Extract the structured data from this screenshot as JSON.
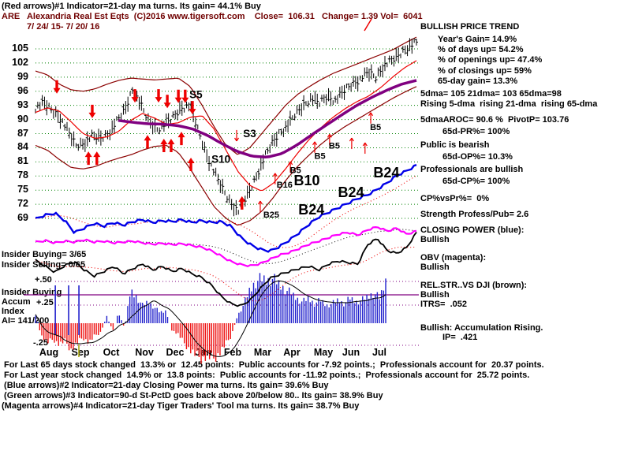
{
  "window": {
    "header_line1": "(Red arrows)#1 Indicator=21-day ma turns. Its gain= 44.1% Buy",
    "header_line2": "ARE   Alexandria Real Est Eqts  (C)2016 www.tigersoft.com    Close=  106.31   Change= 1.39 Vol=  6041",
    "date_range": "7/ 24/ 15- 7/ 20/ 16"
  },
  "right_panel": {
    "lines": [
      "BULLISH PRICE TREND",
      "Year's Gain= 14.9%",
      "% of days up= 54.2%",
      "% of openings up= 47.4%",
      "% of closings up= 59%",
      "65-day gain= 13.3%",
      "5dma= 105 21dma= 103 65dma=98",
      "Rising 5-dma  rising 21-dma  rising 65-dma",
      "5dmaAROC= 90.6 %  PivotP= 103.76",
      "65d-PR%= 100%",
      "Public is bearish",
      "65d-OP%= 10.3%",
      "Professionals are bullish",
      "65d-CP%= 100%",
      "CP%vsPr%=  0%",
      "Strength Profess/Pub= 2.6",
      "CLOSING POWER (blue):",
      "Bullish",
      "OBV (magenta):",
      "Bullish",
      "REL.STR..VS DJI (brown):",
      "Bullish",
      "ITRS=  .052",
      "Bullish: Accumulation Rising.",
      "IP=  .421"
    ]
  },
  "left_labels": [
    "Insider Buying= 3/65",
    "Insider Selling= 0/65",
    "+.50",
    "Insider Buying",
    "Accum",
    "+.25",
    "Index",
    "AI= 141/200",
    "-.25"
  ],
  "footer_lines": [
    " For Last 65 days stock changed  13.3% or  12.45 points:  Public accounts for -7.92 points.;  Professionals account for  20.37 points.",
    " For Last year stock changed  14.9% or  13.8 points:  Public accounts for -11.92 points.;  Professionals account for  25.72 points.",
    " (Blue arrows)#2 Indicator=21-day Closing Power ma turns. Its gain= 39.6% Buy",
    " (Green arrows)#3 Indicator=90-d St-PctD goes back above 20/below 80.. Its gain= 38.9% Buy",
    "(Magenta arrows)#4 Indicator=21-day Tiger Traders' Tool ma turns. Its gain= 38.7% Buy"
  ],
  "colors": {
    "text": "#000000",
    "ticker_text": "#700000",
    "grid_green": "#008000",
    "band": "#8b0000",
    "ma21": "#ee0000",
    "ma65": "#800080",
    "price": "#000000",
    "closing_power": "#0000e8",
    "cp_ma": "#ee0000",
    "obv": "#ff00ff",
    "obv_ma": "#000000",
    "rel_strength": "#000000",
    "rs_ma": "#ee0000",
    "accum_pos": "#2020cc",
    "accum_neg": "#ee1010",
    "ref_purple": "#800080",
    "signal_red": "#ee0000",
    "month_tick": "#a0a000",
    "insider_mark": "#2020cc"
  },
  "chart_data": {
    "type": "ohlc+indicators",
    "symbol": "ARE",
    "y_ticks": [
      105,
      102,
      99,
      96,
      93,
      90,
      87,
      84,
      81,
      78,
      75,
      72,
      69
    ],
    "months": [
      "Aug",
      "Sep",
      "Oct",
      "Nov",
      "Dec",
      "Jan",
      "Feb",
      "Mar",
      "Apr",
      "May",
      "Jun",
      "Jul"
    ],
    "price_weekly_close": [
      92.5,
      93.5,
      92,
      90.5,
      87.5,
      84.5,
      85,
      86.5,
      86,
      87,
      89.5,
      92,
      96.5,
      93,
      89.5,
      88,
      89,
      90.5,
      92.5,
      93,
      88,
      83,
      79,
      75.5,
      72.5,
      70.5,
      73.5,
      77,
      81,
      84.5,
      87,
      88.5,
      91,
      93,
      94.5,
      93.5,
      95,
      94,
      96,
      97.5,
      98.5,
      100,
      99,
      101.5,
      102.5,
      104,
      105.5,
      106.3
    ],
    "ma21": [
      91.5,
      92.5,
      91.8,
      89.5,
      87,
      86,
      86.3,
      87.5,
      89.8,
      91.3,
      90.3,
      89,
      89.3,
      90.5,
      90.8,
      88,
      83.5,
      79,
      76,
      74.8,
      76.5,
      79.5,
      82.8,
      85.8,
      88.3,
      90.5,
      92.3,
      93.8,
      95,
      96.8,
      99,
      101,
      102.5
    ],
    "ma65": {
      "t0": 0.217,
      "values": [
        89.8,
        89.4,
        89.1,
        89,
        88.7,
        88,
        86.6,
        84.8,
        83.2,
        82.2,
        82,
        82.8,
        84.6,
        86.8,
        88.9,
        91,
        93,
        94.7,
        96.2,
        97.5,
        98.3
      ]
    },
    "upper_band": [
      100.3,
      99.5,
      97.5,
      96.3,
      96,
      96.5,
      97.5,
      98.3,
      98.8,
      98.6,
      98.4,
      98.6,
      98.8,
      97,
      93,
      88.5,
      84.5,
      82.5,
      84,
      87,
      90,
      93,
      95.3,
      97,
      98.5,
      99.8,
      100.8,
      101.8,
      102.8,
      103.8,
      104.8,
      106.2,
      107.5
    ],
    "lower_band": [
      84.5,
      83.5,
      81.5,
      79.8,
      79.5,
      80,
      81,
      81.8,
      82.5,
      83.5,
      84.3,
      84.5,
      83,
      79.5,
      75.5,
      71.5,
      69,
      67.5,
      68.5,
      70.5,
      73.5,
      77,
      80,
      82.5,
      84.8,
      86.8,
      88.5,
      90,
      91.5,
      93,
      94.5,
      95.8,
      97
    ],
    "closing_power": [
      0.38,
      0.42,
      0.44,
      0.36,
      0.23,
      0.28,
      0.33,
      0.3,
      0.34,
      0.31,
      0.35,
      0.37,
      0.34,
      0.36,
      0.35,
      0.37,
      0.34,
      0.36,
      0.34,
      0.35,
      0.3,
      0.18,
      0.1,
      0.05,
      0.03,
      0.08,
      0.15,
      0.23,
      0.32,
      0.4,
      0.45,
      0.5,
      0.55,
      0.6,
      0.64,
      0.7,
      0.77,
      0.85,
      0.9,
      0.96
    ],
    "obv": [
      0.6,
      0.63,
      0.58,
      0.62,
      0.6,
      0.65,
      0.6,
      0.62,
      0.58,
      0.6,
      0.62,
      0.58,
      0.55,
      0.57,
      0.54,
      0.56,
      0.52,
      0.48,
      0.4,
      0.28,
      0.15,
      0.08,
      0.05,
      0.1,
      0.2,
      0.3,
      0.36,
      0.45,
      0.55,
      0.62,
      0.7,
      0.78,
      0.82,
      0.76,
      0.88,
      0.95,
      0.85,
      0.92,
      0.78,
      0.85
    ],
    "rel_strength": [
      0.63,
      0.55,
      0.47,
      0.56,
      0.61,
      0.5,
      0.42,
      0.48,
      0.55,
      0.45,
      0.52,
      0.58,
      0.5,
      0.55,
      0.48,
      0.52,
      0.45,
      0.4,
      0.3,
      0.15,
      0.05,
      0.02,
      0.1,
      0.25,
      0.39,
      0.44,
      0.48,
      0.52,
      0.55,
      0.5,
      0.58,
      0.62,
      0.6,
      0.58,
      0.84,
      0.92,
      0.76,
      0.72,
      0.8,
      1
    ],
    "accum_index": [
      0.25,
      -0.35,
      -0.55,
      -0.45,
      -0.6,
      -0.5,
      -0.75,
      -0.55,
      -0.4,
      -0.55,
      -0.35,
      -0.25,
      0.2,
      -0.2,
      0.3,
      -0.15,
      0.9,
      0.75,
      0.5,
      0.6,
      0.45,
      0.3,
      0.35,
      -0.2,
      -0.3,
      -0.55,
      -0.75,
      -0.9,
      -1,
      -0.95,
      -1,
      -0.85,
      -0.6,
      -0.35,
      0.2,
      0.5,
      0.9,
      1.15,
      1.25,
      1.2,
      1.25,
      1.1,
      0.95,
      0.85,
      0.7,
      0.6,
      0.7,
      0.55,
      0.65,
      0.5,
      0.55,
      0.65,
      0.55,
      0.7,
      0.6,
      0.65,
      0.75,
      0.85,
      0.7,
      1.2
    ],
    "ref_levels": [
      "+.50",
      "+.25",
      "-.25"
    ],
    "insider_buy_marks": [
      0.052,
      0.087,
      0.114
    ],
    "signals": {
      "sell_solid": [
        {
          "t": 0.056,
          "p": 97
        },
        {
          "t": 0.149,
          "p": 91.8
        },
        {
          "t": 0.261,
          "p": 95.1
        },
        {
          "t": 0.323,
          "p": 95.1
        },
        {
          "t": 0.346,
          "p": 93.9
        },
        {
          "t": 0.375,
          "p": 95
        },
        {
          "t": 0.393,
          "p": 95
        },
        {
          "t": 0.412,
          "p": 92.6
        }
      ],
      "buy_solid": [
        {
          "t": 0.139,
          "p": 81.7
        },
        {
          "t": 0.161,
          "p": 81.7
        },
        {
          "t": 0.294,
          "p": 85.2
        },
        {
          "t": 0.337,
          "p": 84.4
        },
        {
          "t": 0.356,
          "p": 84.4
        },
        {
          "t": 0.383,
          "p": 85.9
        },
        {
          "t": 0.408,
          "p": 80.4
        },
        {
          "t": 0.542,
          "p": 72.2
        }
      ],
      "buy_thin": [
        {
          "t": 0.59,
          "p": 71.5
        },
        {
          "t": 0.629,
          "p": 77.4
        },
        {
          "t": 0.669,
          "p": 79.9
        },
        {
          "t": 0.733,
          "p": 84.1
        },
        {
          "t": 0.772,
          "p": 85.7
        },
        {
          "t": 0.83,
          "p": 84.9
        },
        {
          "t": 0.865,
          "p": 83.9
        },
        {
          "t": 0.88,
          "p": 90.3
        }
      ],
      "sell_thin": [
        {
          "t": 0.528,
          "p": 86.6
        }
      ]
    },
    "labels": [
      {
        "t": 0.404,
        "p": 95.3,
        "text": "S5",
        "size": "m"
      },
      {
        "t": 0.545,
        "p": 87,
        "text": "S3",
        "size": "m"
      },
      {
        "t": 0.462,
        "p": 81.6,
        "text": "S10",
        "size": "m"
      },
      {
        "t": 0.668,
        "p": 79.4,
        "text": "B5",
        "size": "s"
      },
      {
        "t": 0.732,
        "p": 82.4,
        "text": "B5",
        "size": "s"
      },
      {
        "t": 0.77,
        "p": 84.6,
        "text": "B5",
        "size": "s"
      },
      {
        "t": 0.878,
        "p": 88.5,
        "text": "B5",
        "size": "s"
      },
      {
        "t": 0.633,
        "p": 76.3,
        "text": "B16",
        "size": "s"
      },
      {
        "t": 0.678,
        "p": 76.8,
        "text": "B10",
        "size": "l"
      },
      {
        "t": 0.598,
        "p": 69.9,
        "text": "B25",
        "size": "s"
      },
      {
        "t": 0.69,
        "p": 70.6,
        "text": "B24",
        "size": "l"
      },
      {
        "t": 0.794,
        "p": 74.3,
        "text": "B24",
        "size": "l"
      },
      {
        "t": 0.887,
        "p": 78.5,
        "text": "B24",
        "size": "l"
      }
    ]
  }
}
